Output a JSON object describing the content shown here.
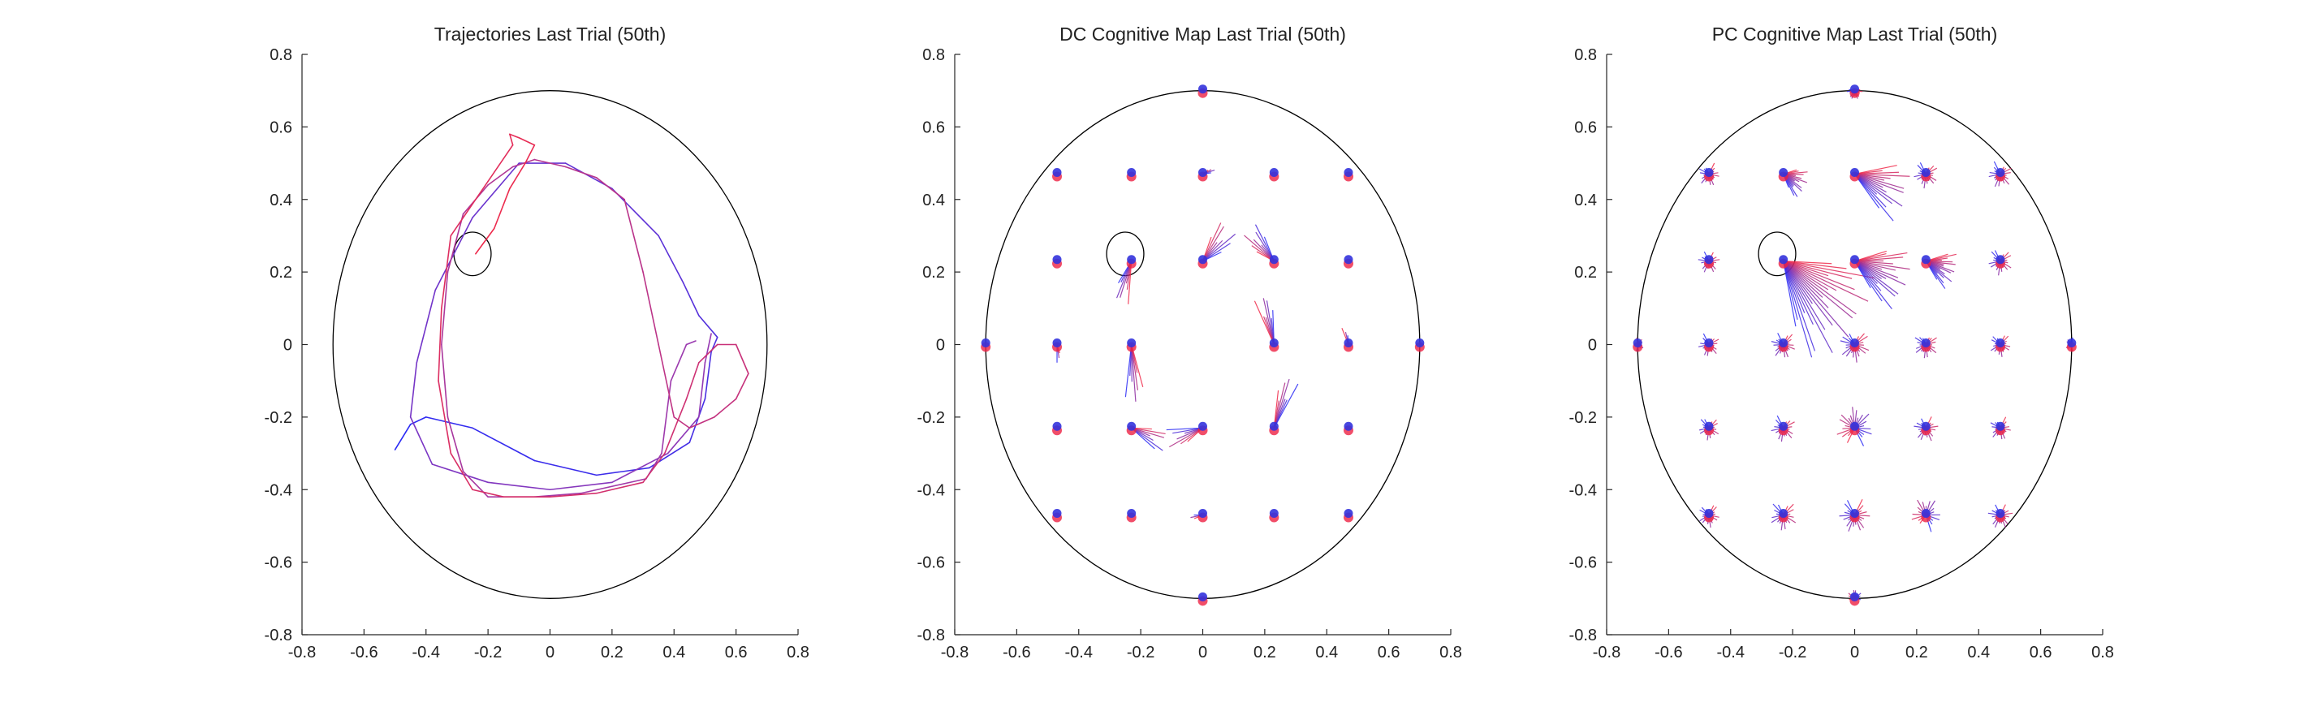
{
  "figure": {
    "colors": {
      "background": "#ffffff",
      "axis": "#262626",
      "boundary": "#000000",
      "blue": "#2a2af5",
      "red": "#f02a4a",
      "purple": "#9a3ab0",
      "blue_dot": "#3333dd",
      "red_dot": "#ee2244"
    }
  },
  "chart_data": [
    {
      "type": "line",
      "title": "Trajectories Last Trial (50th)",
      "xlabel": "",
      "ylabel": "",
      "xlim": [
        -0.8,
        0.8
      ],
      "ylim": [
        -0.8,
        0.8
      ],
      "xticks": [
        "-0.8",
        "-0.6",
        "-0.4",
        "-0.2",
        "0",
        "0.2",
        "0.4",
        "0.6",
        "0.8"
      ],
      "yticks": [
        "-0.8",
        "-0.6",
        "-0.4",
        "-0.2",
        "0",
        "0.2",
        "0.4",
        "0.6",
        "0.8"
      ],
      "boundary": {
        "center": [
          0,
          0
        ],
        "radius": 0.7
      },
      "goal": {
        "center": [
          -0.25,
          0.25
        ],
        "radius": 0.06
      },
      "series": [
        {
          "color": "blue",
          "points": [
            [
              -0.5,
              -0.29
            ],
            [
              -0.45,
              -0.22
            ],
            [
              -0.4,
              -0.2
            ],
            [
              -0.25,
              -0.23
            ],
            [
              -0.05,
              -0.32
            ],
            [
              0.15,
              -0.36
            ],
            [
              0.32,
              -0.34
            ],
            [
              0.45,
              -0.27
            ],
            [
              0.5,
              -0.15
            ],
            [
              0.52,
              -0.02
            ],
            [
              0.54,
              0.02
            ],
            [
              0.48,
              0.08
            ],
            [
              0.43,
              0.17
            ],
            [
              0.35,
              0.3
            ],
            [
              0.2,
              0.43
            ],
            [
              0.05,
              0.5
            ],
            [
              -0.1,
              0.5
            ],
            [
              -0.25,
              0.35
            ],
            [
              -0.37,
              0.15
            ],
            [
              -0.43,
              -0.05
            ],
            [
              -0.45,
              -0.2
            ],
            [
              -0.38,
              -0.33
            ],
            [
              -0.2,
              -0.38
            ],
            [
              0,
              -0.4
            ],
            [
              0.2,
              -0.38
            ],
            [
              0.38,
              -0.3
            ],
            [
              0.48,
              -0.2
            ],
            [
              0.5,
              -0.05
            ],
            [
              0.52,
              0.03
            ]
          ]
        },
        {
          "color": "red",
          "points": [
            [
              0.47,
              0.01
            ],
            [
              0.44,
              0.0
            ],
            [
              0.39,
              -0.1
            ],
            [
              0.36,
              -0.3
            ],
            [
              0.31,
              -0.37
            ],
            [
              0.1,
              -0.41
            ],
            [
              -0.05,
              -0.42
            ],
            [
              -0.2,
              -0.42
            ],
            [
              -0.28,
              -0.35
            ],
            [
              -0.33,
              -0.2
            ],
            [
              -0.35,
              0.0
            ],
            [
              -0.33,
              0.2
            ],
            [
              -0.28,
              0.36
            ],
            [
              -0.2,
              0.44
            ],
            [
              -0.12,
              0.49
            ],
            [
              -0.05,
              0.51
            ],
            [
              0.05,
              0.49
            ],
            [
              0.15,
              0.46
            ],
            [
              0.24,
              0.4
            ],
            [
              0.3,
              0.2
            ],
            [
              0.35,
              0.0
            ],
            [
              0.38,
              -0.12
            ],
            [
              0.4,
              -0.2
            ],
            [
              0.45,
              -0.23
            ],
            [
              0.53,
              -0.2
            ],
            [
              0.6,
              -0.15
            ],
            [
              0.64,
              -0.08
            ],
            [
              0.6,
              0.0
            ],
            [
              0.54,
              0.0
            ],
            [
              0.48,
              -0.05
            ],
            [
              0.44,
              -0.15
            ],
            [
              0.37,
              -0.3
            ],
            [
              0.3,
              -0.38
            ],
            [
              0.15,
              -0.41
            ],
            [
              0.0,
              -0.42
            ],
            [
              -0.15,
              -0.42
            ],
            [
              -0.25,
              -0.4
            ],
            [
              -0.32,
              -0.3
            ],
            [
              -0.36,
              -0.1
            ],
            [
              -0.35,
              0.1
            ],
            [
              -0.32,
              0.3
            ],
            [
              -0.2,
              0.45
            ],
            [
              -0.12,
              0.55
            ],
            [
              -0.13,
              0.58
            ],
            [
              -0.1,
              0.57
            ],
            [
              -0.05,
              0.55
            ],
            [
              -0.08,
              0.5
            ],
            [
              -0.13,
              0.43
            ],
            [
              -0.18,
              0.32
            ],
            [
              -0.24,
              0.25
            ]
          ]
        }
      ]
    },
    {
      "type": "scatter",
      "title": "DC Cognitive Map Last Trial (50th)",
      "xlabel": "",
      "ylabel": "",
      "xlim": [
        -0.8,
        0.8
      ],
      "ylim": [
        -0.8,
        0.8
      ],
      "xticks": [
        "-0.8",
        "-0.6",
        "-0.4",
        "-0.2",
        "0",
        "0.2",
        "0.4",
        "0.6",
        "0.8"
      ],
      "yticks": [
        "-0.8",
        "-0.6",
        "-0.4",
        "-0.2",
        "0",
        "0.2",
        "0.4",
        "0.6",
        "0.8"
      ],
      "boundary": {
        "center": [
          0,
          0
        ],
        "radius": 0.7
      },
      "goal": {
        "center": [
          -0.25,
          0.25
        ],
        "radius": 0.06
      },
      "nodes": [
        {
          "x": 0,
          "y": 0.7,
          "fan": {
            "angle": 0,
            "spread": 0,
            "len": 0,
            "n": 0
          }
        },
        {
          "x": -0.7,
          "y": 0,
          "fan": {
            "angle": 0,
            "spread": 0,
            "len": 0,
            "n": 0
          }
        },
        {
          "x": 0.7,
          "y": 0,
          "fan": {
            "angle": 0,
            "spread": 0,
            "len": 0,
            "n": 0
          }
        },
        {
          "x": 0,
          "y": -0.7,
          "fan": {
            "angle": 0,
            "spread": 0,
            "len": 0,
            "n": 0
          }
        },
        {
          "x": -0.47,
          "y": 0.47,
          "fan": {
            "angle": 0,
            "spread": 0,
            "len": 0,
            "n": 0
          }
        },
        {
          "x": -0.23,
          "y": 0.47,
          "fan": {
            "angle": 0,
            "spread": 0,
            "len": 0,
            "n": 0
          }
        },
        {
          "x": 0,
          "y": 0.47,
          "fan": {
            "angle": 20,
            "spread": 25,
            "len": 0.04,
            "n": 4
          }
        },
        {
          "x": 0.23,
          "y": 0.47,
          "fan": {
            "angle": 0,
            "spread": 0,
            "len": 0,
            "n": 0
          }
        },
        {
          "x": 0.47,
          "y": 0.47,
          "fan": {
            "angle": 0,
            "spread": 0,
            "len": 0,
            "n": 0
          }
        },
        {
          "x": -0.47,
          "y": 0.23,
          "fan": {
            "angle": 0,
            "spread": 0,
            "len": 0,
            "n": 0
          }
        },
        {
          "x": -0.23,
          "y": 0.23,
          "fan": {
            "angle": -110,
            "spread": 30,
            "len": 0.12,
            "n": 7
          }
        },
        {
          "x": 0,
          "y": 0.23,
          "fan": {
            "angle": 45,
            "spread": 45,
            "len": 0.13,
            "n": 8
          }
        },
        {
          "x": 0.23,
          "y": 0.23,
          "fan": {
            "angle": 135,
            "spread": 40,
            "len": 0.12,
            "n": 8
          }
        },
        {
          "x": 0.47,
          "y": 0.23,
          "fan": {
            "angle": 0,
            "spread": 0,
            "len": 0,
            "n": 0
          }
        },
        {
          "x": -0.47,
          "y": 0,
          "fan": {
            "angle": -80,
            "spread": 20,
            "len": 0.05,
            "n": 3
          }
        },
        {
          "x": -0.23,
          "y": 0,
          "fan": {
            "angle": -85,
            "spread": 25,
            "len": 0.16,
            "n": 7
          }
        },
        {
          "x": 0.23,
          "y": 0,
          "fan": {
            "angle": 105,
            "spread": 25,
            "len": 0.14,
            "n": 7
          }
        },
        {
          "x": 0.47,
          "y": 0,
          "fan": {
            "angle": 105,
            "spread": 20,
            "len": 0.05,
            "n": 3
          }
        },
        {
          "x": -0.47,
          "y": -0.23,
          "fan": {
            "angle": 0,
            "spread": 0,
            "len": 0,
            "n": 0
          }
        },
        {
          "x": -0.23,
          "y": -0.23,
          "fan": {
            "angle": -20,
            "spread": 35,
            "len": 0.12,
            "n": 7
          }
        },
        {
          "x": 0,
          "y": -0.23,
          "fan": {
            "angle": -160,
            "spread": 35,
            "len": 0.12,
            "n": 7
          }
        },
        {
          "x": 0.23,
          "y": -0.23,
          "fan": {
            "angle": 70,
            "spread": 25,
            "len": 0.15,
            "n": 7
          }
        },
        {
          "x": 0.47,
          "y": -0.23,
          "fan": {
            "angle": 0,
            "spread": 0,
            "len": 0,
            "n": 0
          }
        },
        {
          "x": -0.47,
          "y": -0.47,
          "fan": {
            "angle": 0,
            "spread": 0,
            "len": 0,
            "n": 0
          }
        },
        {
          "x": -0.23,
          "y": -0.47,
          "fan": {
            "angle": 0,
            "spread": 0,
            "len": 0,
            "n": 0
          }
        },
        {
          "x": 0,
          "y": -0.47,
          "fan": {
            "angle": -170,
            "spread": 20,
            "len": 0.04,
            "n": 3
          }
        },
        {
          "x": 0.23,
          "y": -0.47,
          "fan": {
            "angle": 0,
            "spread": 0,
            "len": 0,
            "n": 0
          }
        },
        {
          "x": 0.47,
          "y": -0.47,
          "fan": {
            "angle": 0,
            "spread": 0,
            "len": 0,
            "n": 0
          }
        }
      ]
    },
    {
      "type": "scatter",
      "title": "PC Cognitive Map Last Trial (50th)",
      "xlabel": "",
      "ylabel": "",
      "xlim": [
        -0.8,
        0.8
      ],
      "ylim": [
        -0.8,
        0.8
      ],
      "xticks": [
        "-0.8",
        "-0.6",
        "-0.4",
        "-0.2",
        "0",
        "0.2",
        "0.4",
        "0.6",
        "0.8"
      ],
      "yticks": [
        "-0.8",
        "-0.6",
        "-0.4",
        "-0.2",
        "0",
        "0.2",
        "0.4",
        "0.6",
        "0.8"
      ],
      "boundary": {
        "center": [
          0,
          0
        ],
        "radius": 0.7
      },
      "goal": {
        "center": [
          -0.25,
          0.25
        ],
        "radius": 0.06
      },
      "nodes": [
        {
          "x": 0,
          "y": 0.7,
          "fan": {
            "angle": -90,
            "spread": 200,
            "len": 0.025,
            "n": 14
          }
        },
        {
          "x": -0.7,
          "y": 0,
          "fan": {
            "angle": 0,
            "spread": 200,
            "len": 0.02,
            "n": 12
          }
        },
        {
          "x": 0.7,
          "y": 0,
          "fan": {
            "angle": 180,
            "spread": 200,
            "len": 0.02,
            "n": 12
          }
        },
        {
          "x": 0,
          "y": -0.7,
          "fan": {
            "angle": 90,
            "spread": 200,
            "len": 0.025,
            "n": 14
          }
        },
        {
          "x": -0.47,
          "y": 0.47,
          "fan": {
            "angle": -90,
            "spread": 300,
            "len": 0.035,
            "n": 18
          }
        },
        {
          "x": -0.23,
          "y": 0.47,
          "fan": {
            "angle": -25,
            "spread": 80,
            "len": 0.08,
            "n": 16
          }
        },
        {
          "x": 0,
          "y": 0.47,
          "fan": {
            "angle": -20,
            "spread": 60,
            "len": 0.18,
            "n": 16
          }
        },
        {
          "x": 0.23,
          "y": 0.47,
          "fan": {
            "angle": -90,
            "spread": 300,
            "len": 0.04,
            "n": 18
          }
        },
        {
          "x": 0.47,
          "y": 0.47,
          "fan": {
            "angle": -90,
            "spread": 300,
            "len": 0.04,
            "n": 18
          }
        },
        {
          "x": -0.47,
          "y": 0.23,
          "fan": {
            "angle": -90,
            "spread": 300,
            "len": 0.035,
            "n": 18
          }
        },
        {
          "x": -0.23,
          "y": 0.23,
          "fan": {
            "angle": -40,
            "spread": 75,
            "len": 0.3,
            "n": 24
          }
        },
        {
          "x": 0,
          "y": 0.23,
          "fan": {
            "angle": -20,
            "spread": 70,
            "len": 0.18,
            "n": 20
          }
        },
        {
          "x": 0.23,
          "y": 0.23,
          "fan": {
            "angle": -20,
            "spread": 70,
            "len": 0.1,
            "n": 18
          }
        },
        {
          "x": 0.47,
          "y": 0.23,
          "fan": {
            "angle": -90,
            "spread": 300,
            "len": 0.04,
            "n": 18
          }
        },
        {
          "x": -0.47,
          "y": 0,
          "fan": {
            "angle": -90,
            "spread": 300,
            "len": 0.035,
            "n": 18
          }
        },
        {
          "x": -0.23,
          "y": 0,
          "fan": {
            "angle": -90,
            "spread": 300,
            "len": 0.04,
            "n": 20
          }
        },
        {
          "x": 0,
          "y": 0,
          "fan": {
            "angle": -90,
            "spread": 300,
            "len": 0.05,
            "n": 20
          }
        },
        {
          "x": 0.23,
          "y": 0,
          "fan": {
            "angle": -90,
            "spread": 300,
            "len": 0.04,
            "n": 20
          }
        },
        {
          "x": 0.47,
          "y": 0,
          "fan": {
            "angle": -90,
            "spread": 300,
            "len": 0.035,
            "n": 18
          }
        },
        {
          "x": -0.47,
          "y": -0.23,
          "fan": {
            "angle": -90,
            "spread": 300,
            "len": 0.035,
            "n": 18
          }
        },
        {
          "x": -0.23,
          "y": -0.23,
          "fan": {
            "angle": -90,
            "spread": 300,
            "len": 0.04,
            "n": 18
          }
        },
        {
          "x": 0,
          "y": -0.23,
          "fan": {
            "angle": 90,
            "spread": 300,
            "len": 0.06,
            "n": 22
          }
        },
        {
          "x": 0.23,
          "y": -0.23,
          "fan": {
            "angle": -90,
            "spread": 300,
            "len": 0.04,
            "n": 18
          }
        },
        {
          "x": 0.47,
          "y": -0.23,
          "fan": {
            "angle": -90,
            "spread": 300,
            "len": 0.035,
            "n": 18
          }
        },
        {
          "x": -0.47,
          "y": -0.47,
          "fan": {
            "angle": -90,
            "spread": 300,
            "len": 0.035,
            "n": 18
          }
        },
        {
          "x": -0.23,
          "y": -0.47,
          "fan": {
            "angle": -90,
            "spread": 300,
            "len": 0.045,
            "n": 18
          }
        },
        {
          "x": 0,
          "y": -0.47,
          "fan": {
            "angle": -90,
            "spread": 300,
            "len": 0.05,
            "n": 20
          }
        },
        {
          "x": 0.23,
          "y": -0.47,
          "fan": {
            "angle": 80,
            "spread": 300,
            "len": 0.05,
            "n": 18
          }
        },
        {
          "x": 0.47,
          "y": -0.47,
          "fan": {
            "angle": -90,
            "spread": 300,
            "len": 0.04,
            "n": 18
          }
        }
      ]
    }
  ]
}
